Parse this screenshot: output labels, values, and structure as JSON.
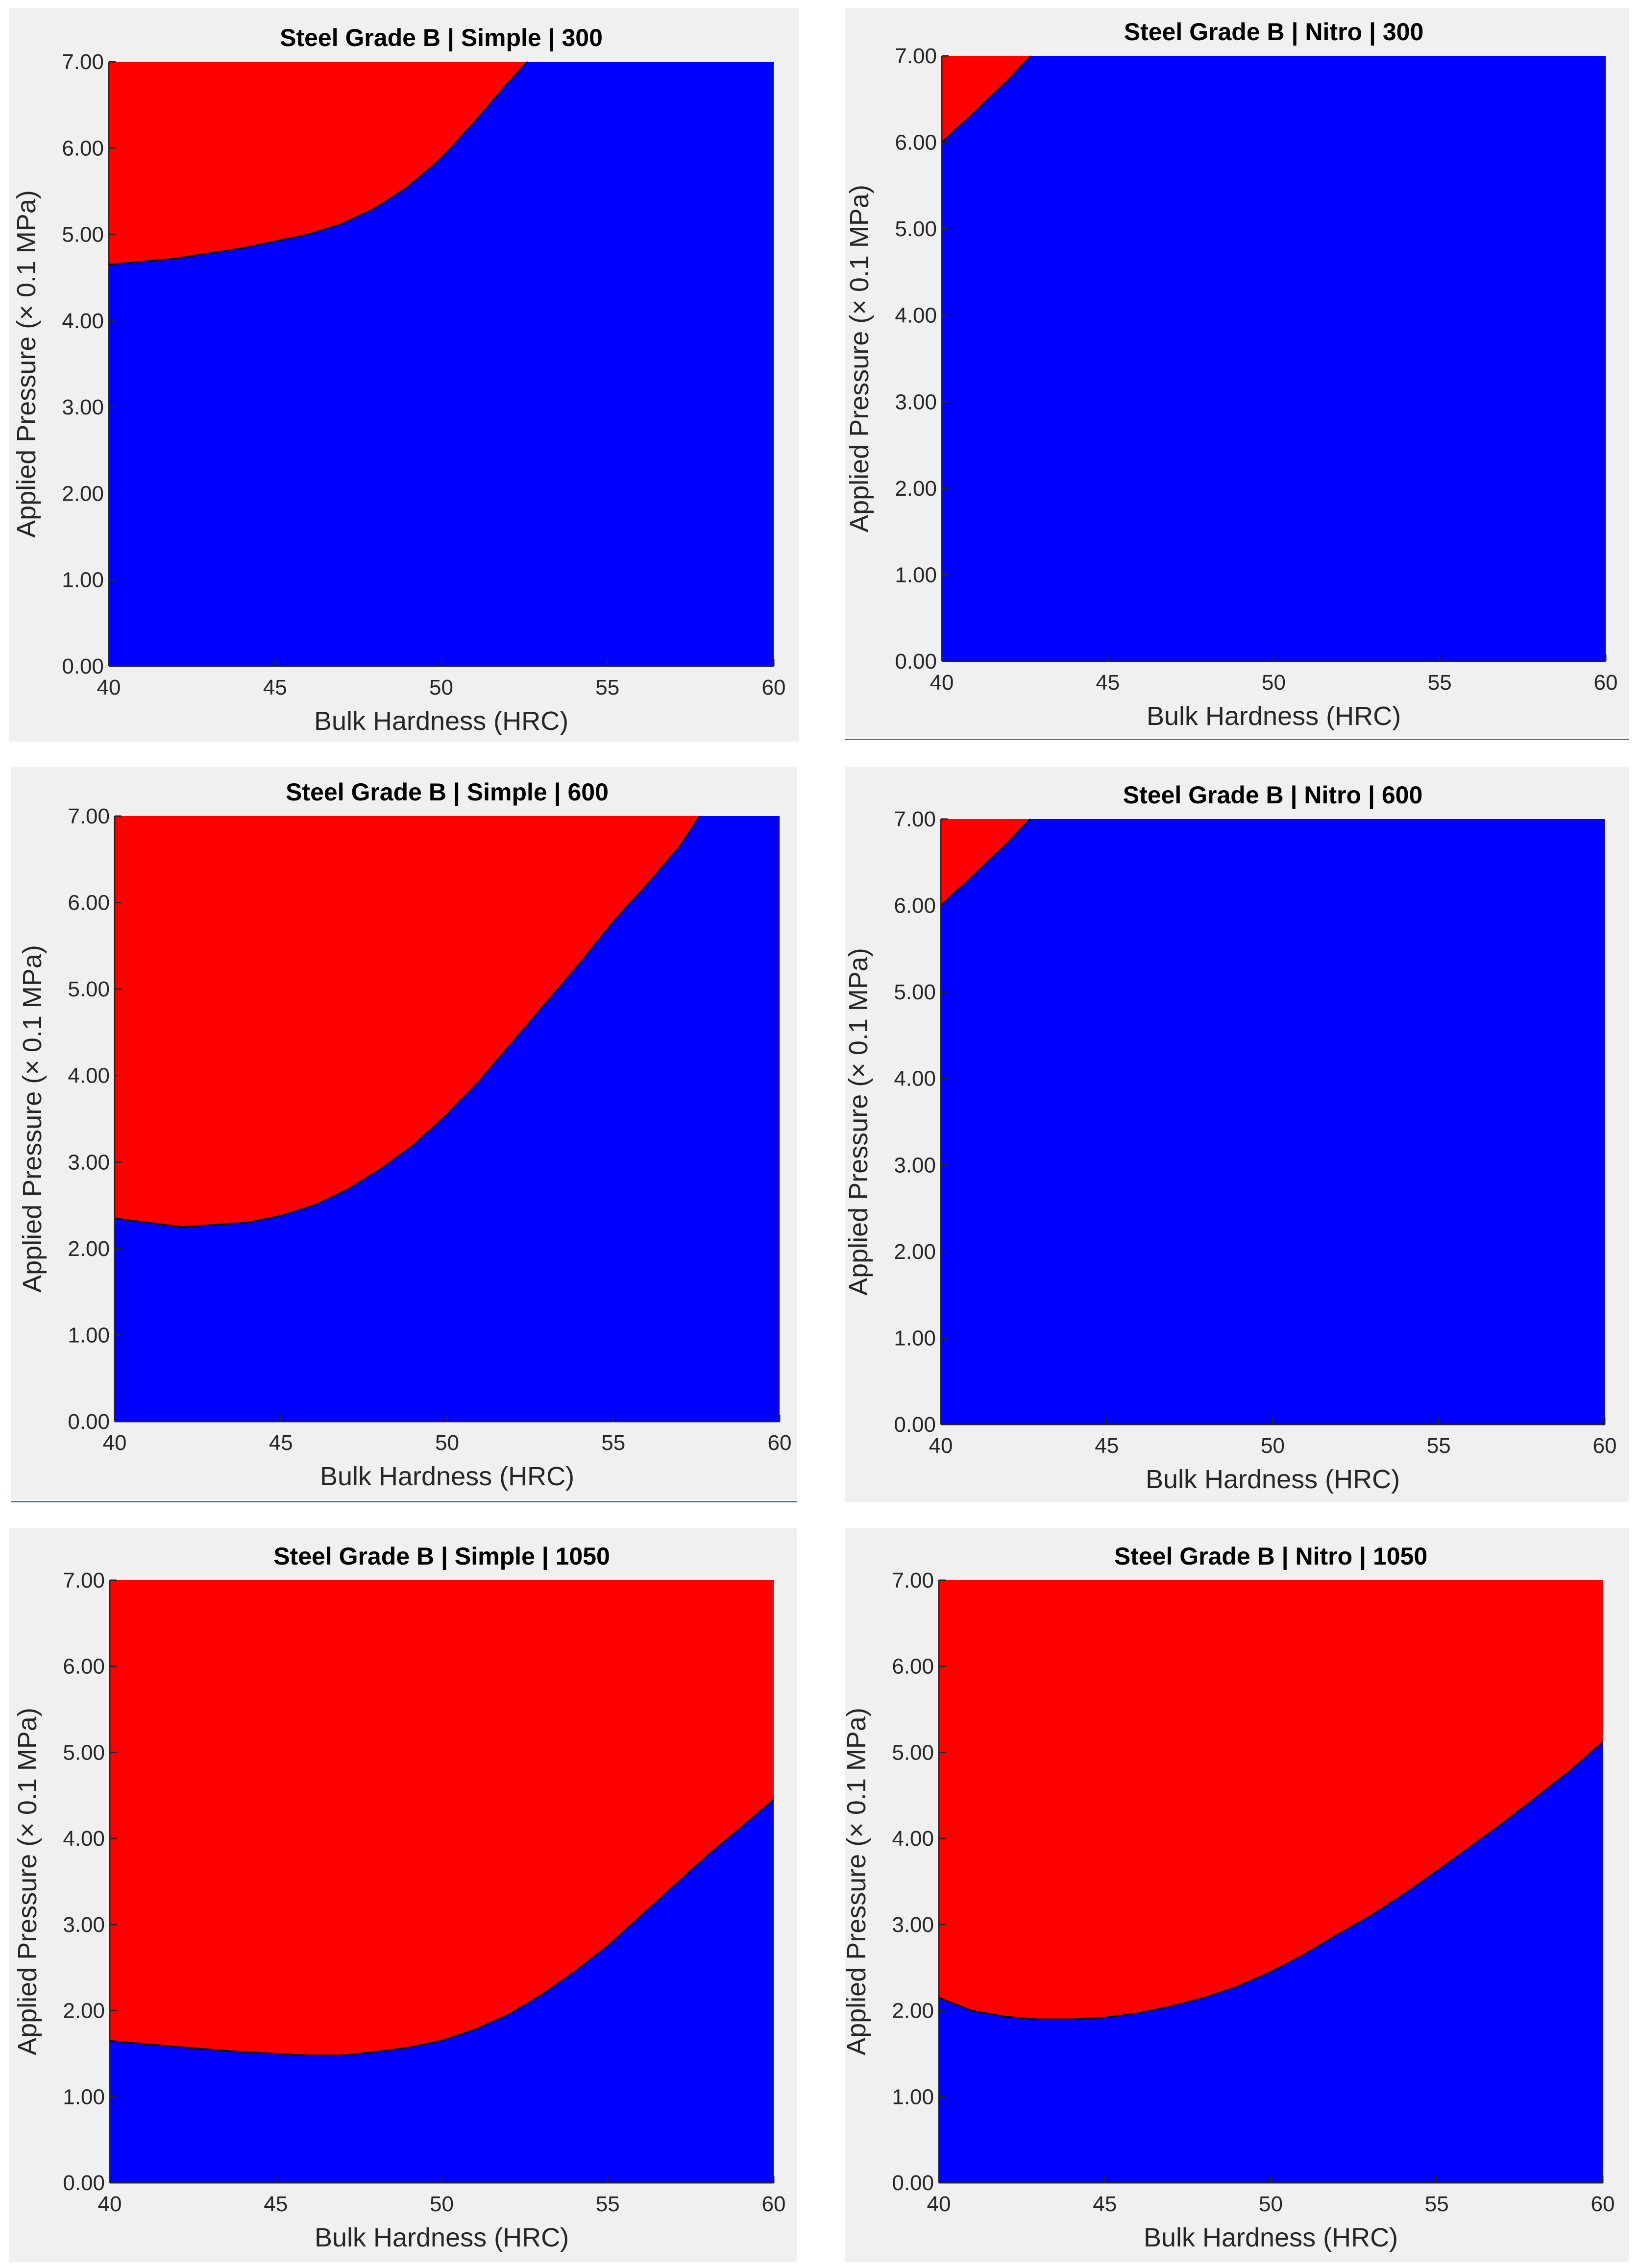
{
  "colors": {
    "panel_bg": "#f0f0f0",
    "region_upper": "#ff0000",
    "region_lower": "#0000ff",
    "boundary": "#000000",
    "axis_text": "#262626",
    "separator": "#1a7fd4"
  },
  "chart_data": [
    {
      "type": "area",
      "title": "Steel Grade B | Simple | 300",
      "xlabel": "Bulk Hardness (HRC)",
      "ylabel": "Applied Pressure (× 0.1 MPa)",
      "xlim": [
        40,
        60
      ],
      "ylim": [
        0,
        7
      ],
      "xticks": [
        "40",
        "45",
        "50",
        "55",
        "60"
      ],
      "yticks": [
        "0.00",
        "1.00",
        "2.00",
        "3.00",
        "4.00",
        "5.00",
        "6.00",
        "7.00"
      ],
      "grid": false,
      "legend": "none",
      "boundary": {
        "x": [
          40,
          42,
          44,
          46,
          47,
          48,
          49,
          50,
          51,
          52,
          52.6
        ],
        "y": [
          4.65,
          4.72,
          4.84,
          5.0,
          5.12,
          5.3,
          5.55,
          5.88,
          6.3,
          6.75,
          7.0
        ]
      }
    },
    {
      "type": "area",
      "title": "Steel Grade B | Nitro | 300",
      "xlabel": "Bulk Hardness (HRC)",
      "ylabel": "Applied Pressure (× 0.1 MPa)",
      "xlim": [
        40,
        60
      ],
      "ylim": [
        0,
        7
      ],
      "xticks": [
        "40",
        "45",
        "50",
        "55",
        "60"
      ],
      "yticks": [
        "0.00",
        "1.00",
        "2.00",
        "3.00",
        "4.00",
        "5.00",
        "6.00",
        "7.00"
      ],
      "grid": false,
      "legend": "none",
      "boundary": {
        "x": [
          40,
          41,
          42,
          42.7
        ],
        "y": [
          6.0,
          6.35,
          6.72,
          7.0
        ]
      }
    },
    {
      "type": "area",
      "title": "Steel Grade B | Simple | 600",
      "xlabel": "Bulk Hardness (HRC)",
      "ylabel": "Applied Pressure (× 0.1 MPa)",
      "xlim": [
        40,
        60
      ],
      "ylim": [
        0,
        7
      ],
      "xticks": [
        "40",
        "45",
        "50",
        "55",
        "60"
      ],
      "yticks": [
        "0.00",
        "1.00",
        "2.00",
        "3.00",
        "4.00",
        "5.00",
        "6.00",
        "7.00"
      ],
      "grid": false,
      "legend": "none",
      "boundary": {
        "x": [
          40,
          42,
          44,
          45,
          46,
          47,
          48,
          49,
          50,
          51,
          52,
          53,
          54,
          55,
          56,
          57,
          57.6
        ],
        "y": [
          2.35,
          2.25,
          2.3,
          2.38,
          2.5,
          2.68,
          2.92,
          3.2,
          3.55,
          3.95,
          4.4,
          4.85,
          5.3,
          5.78,
          6.2,
          6.65,
          7.0
        ]
      }
    },
    {
      "type": "area",
      "title": "Steel Grade B | Nitro | 600",
      "xlabel": "Bulk Hardness (HRC)",
      "ylabel": "Applied Pressure (× 0.1 MPa)",
      "xlim": [
        40,
        60
      ],
      "ylim": [
        0,
        7
      ],
      "xticks": [
        "40",
        "45",
        "50",
        "55",
        "60"
      ],
      "yticks": [
        "0.00",
        "1.00",
        "2.00",
        "3.00",
        "4.00",
        "5.00",
        "6.00",
        "7.00"
      ],
      "grid": false,
      "legend": "none",
      "boundary": {
        "x": [
          40,
          41,
          42,
          42.7
        ],
        "y": [
          6.0,
          6.35,
          6.72,
          7.0
        ]
      }
    },
    {
      "type": "area",
      "title": "Steel Grade B | Simple | 1050",
      "xlabel": "Bulk Hardness (HRC)",
      "ylabel": "Applied Pressure (× 0.1 MPa)",
      "xlim": [
        40,
        60
      ],
      "ylim": [
        0,
        7
      ],
      "xticks": [
        "40",
        "45",
        "50",
        "55",
        "60"
      ],
      "yticks": [
        "0.00",
        "1.00",
        "2.00",
        "3.00",
        "4.00",
        "5.00",
        "6.00",
        "7.00"
      ],
      "grid": false,
      "legend": "none",
      "boundary": {
        "x": [
          40,
          42,
          44,
          46,
          47,
          48,
          49,
          50,
          51,
          52,
          53,
          54,
          55,
          56,
          57,
          58,
          59,
          60
        ],
        "y": [
          1.65,
          1.58,
          1.52,
          1.48,
          1.48,
          1.52,
          1.57,
          1.65,
          1.78,
          1.95,
          2.18,
          2.45,
          2.75,
          3.1,
          3.45,
          3.8,
          4.12,
          4.45
        ]
      }
    },
    {
      "type": "area",
      "title": "Steel Grade B | Nitro | 1050",
      "xlabel": "Bulk Hardness (HRC)",
      "ylabel": "Applied Pressure (× 0.1 MPa)",
      "xlim": [
        40,
        60
      ],
      "ylim": [
        0,
        7
      ],
      "xticks": [
        "40",
        "45",
        "50",
        "55",
        "60"
      ],
      "yticks": [
        "0.00",
        "1.00",
        "2.00",
        "3.00",
        "4.00",
        "5.00",
        "6.00",
        "7.00"
      ],
      "grid": false,
      "legend": "none",
      "boundary": {
        "x": [
          40,
          41,
          42,
          43,
          44,
          45,
          46,
          47,
          48,
          49,
          50,
          51,
          52,
          53,
          54,
          55,
          56,
          57,
          58,
          59,
          60
        ],
        "y": [
          2.15,
          2.0,
          1.93,
          1.9,
          1.9,
          1.92,
          1.97,
          2.05,
          2.15,
          2.28,
          2.45,
          2.65,
          2.88,
          3.1,
          3.35,
          3.62,
          3.9,
          4.18,
          4.48,
          4.78,
          5.12
        ]
      }
    }
  ]
}
